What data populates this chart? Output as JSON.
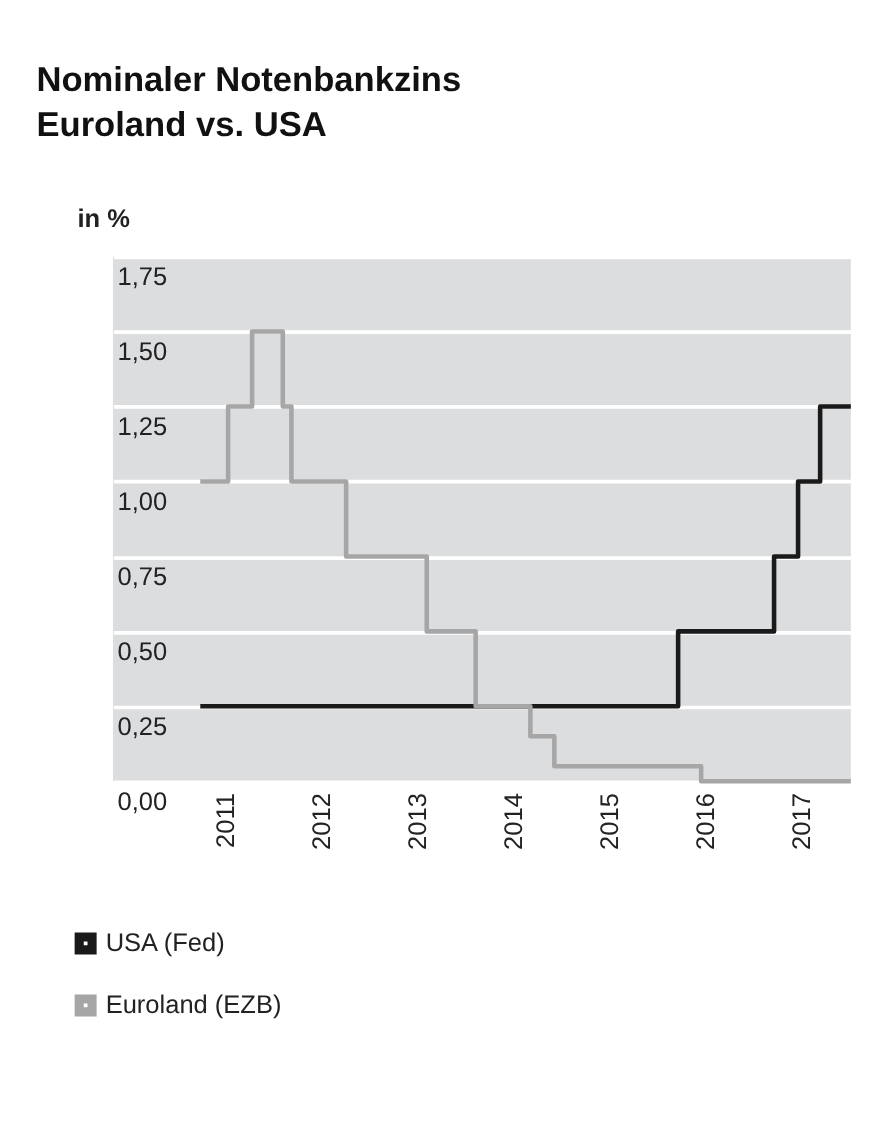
{
  "chart_data": {
    "type": "step",
    "title": "Nominaler Notenbankzins\nEuroland vs. USA",
    "ylabel": "in %",
    "series": [
      {
        "name": "USA (Fed)",
        "color": "#1a1a1a",
        "x": [
          2010.73,
          2015.71,
          2016.71,
          2016.96,
          2017.19,
          2017.51
        ],
        "values": [
          0.25,
          0.5,
          0.75,
          1.0,
          1.25,
          1.25
        ]
      },
      {
        "name": "Euroland (EZB)",
        "color": "#a6a6a6",
        "x": [
          2010.73,
          2011.02,
          2011.27,
          2011.59,
          2011.68,
          2012.25,
          2013.09,
          2013.6,
          2014.17,
          2014.42,
          2015.95,
          2017.51
        ],
        "values": [
          1.0,
          1.25,
          1.5,
          1.25,
          1.0,
          0.75,
          0.5,
          0.25,
          0.15,
          0.05,
          0.0,
          0.0
        ]
      }
    ],
    "xlim": [
      2009.82,
      2017.51
    ],
    "xticks": [
      2011,
      2012,
      2013,
      2014,
      2015,
      2016,
      2017
    ],
    "ylim": [
      0,
      1.75
    ],
    "yticks": [
      {
        "value": 0,
        "label": "0,00"
      },
      {
        "value": 0.25,
        "label": "0,25"
      },
      {
        "value": 0.5,
        "label": "0,50"
      },
      {
        "value": 0.75,
        "label": "0,75"
      },
      {
        "value": 1.0,
        "label": "1,00"
      },
      {
        "value": 1.25,
        "label": "1,25"
      },
      {
        "value": 1.5,
        "label": "1,50"
      },
      {
        "value": 1.75,
        "label": "1,75"
      }
    ],
    "grid": "y",
    "legend": "bottom"
  }
}
